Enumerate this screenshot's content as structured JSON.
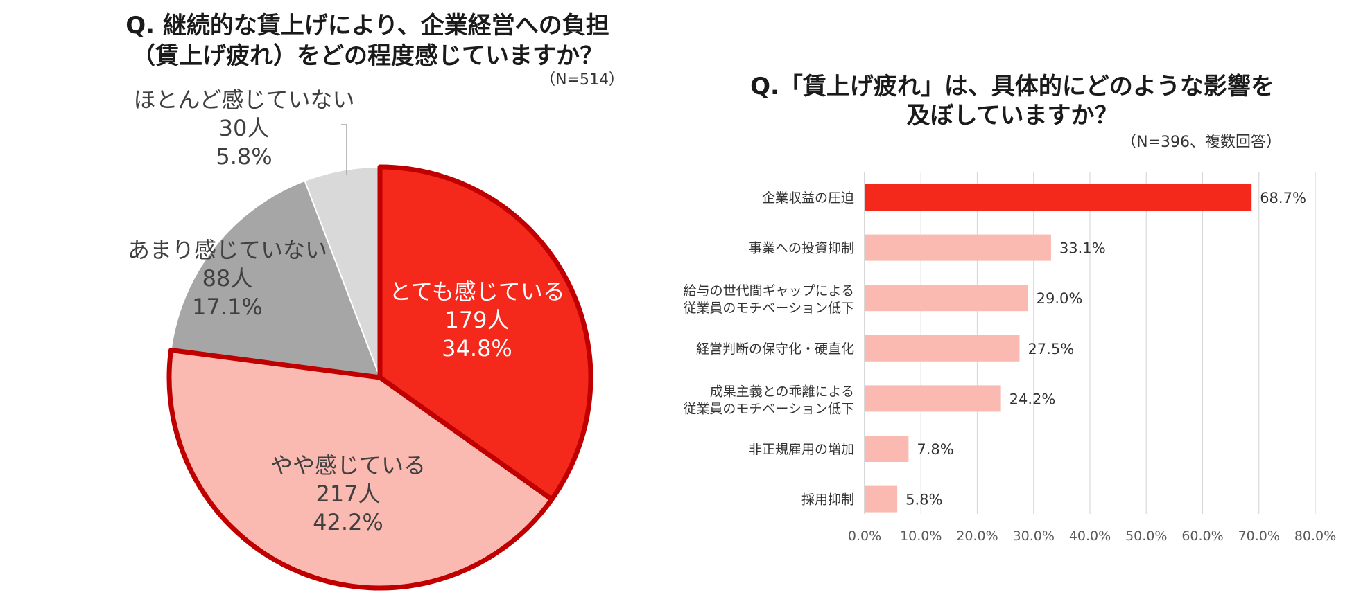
{
  "chart_data": [
    {
      "type": "pie",
      "title_lines": [
        "Q. 継続的な賃上げにより、企業経営への負担",
        "（賃上げ疲れ）をどの程度感じていますか？"
      ],
      "sample": "（N=514）",
      "slices": [
        {
          "label": "とても感じている",
          "count": "179人",
          "percent": "34.8%",
          "value": 34.8,
          "color": "#f5281c"
        },
        {
          "label": "やや感じている",
          "count": "217人",
          "percent": "42.2%",
          "value": 42.2,
          "color": "#fbbab1"
        },
        {
          "label": "あまり感じていない",
          "count": "88人",
          "percent": "17.1%",
          "value": 17.1,
          "color": "#a6a6a6"
        },
        {
          "label": "ほとんど感じていない",
          "count": "30人",
          "percent": "5.8%",
          "value": 5.8,
          "color": "#d9d9d9"
        }
      ],
      "highlight_border_color": "#c00000"
    },
    {
      "type": "bar",
      "orientation": "horizontal",
      "title_lines": [
        "Q.「賃上げ疲れ」は、具体的にどのような影響を",
        "及ぼしていますか？"
      ],
      "sample": "（N=396、複数回答）",
      "categories": [
        [
          "企業収益の圧迫"
        ],
        [
          "事業への投資抑制"
        ],
        [
          "給与の世代間ギャップによる",
          "従業員のモチベーション低下"
        ],
        [
          "経営判断の保守化・硬直化"
        ],
        [
          "成果主義との乖離による",
          "従業員のモチベーション低下"
        ],
        [
          "非正規雇用の増加"
        ],
        [
          "採用抑制"
        ]
      ],
      "values": [
        68.7,
        33.1,
        29.0,
        27.5,
        24.2,
        7.8,
        5.8
      ],
      "value_labels": [
        "68.7%",
        "33.1%",
        "29.0%",
        "27.5%",
        "24.2%",
        "7.8%",
        "5.8%"
      ],
      "bar_colors": [
        "#f5281c",
        "#fbbab1",
        "#fbbab1",
        "#fbbab1",
        "#fbbab1",
        "#fbbab1",
        "#fbbab1"
      ],
      "xlim": [
        0,
        80
      ],
      "ticks": [
        "0.0%",
        "10.0%",
        "20.0%",
        "30.0%",
        "40.0%",
        "50.0%",
        "60.0%",
        "70.0%",
        "80.0%"
      ],
      "grid": true
    }
  ]
}
